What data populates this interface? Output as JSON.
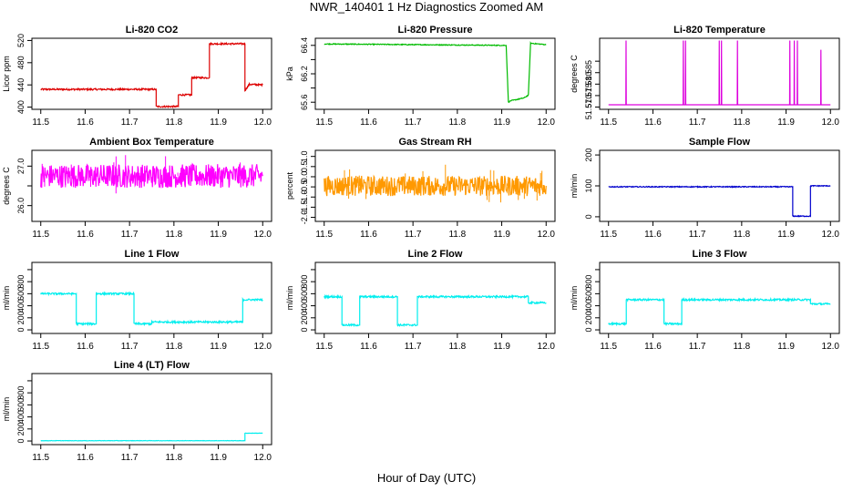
{
  "figure": {
    "title": "NWR_140401  1 Hz Diagnostics Zoomed AM",
    "xlabel": "Hour of Day (UTC)"
  },
  "chart_data": [
    {
      "type": "line",
      "title": "Li-820 CO2",
      "ylabel": "Licor ppm",
      "color": "#dd0000",
      "xlim": [
        11.48,
        12.02
      ],
      "ylim": [
        396,
        524
      ],
      "xticks": [
        11.5,
        11.6,
        11.7,
        11.8,
        11.9,
        12.0
      ],
      "yticks": [
        400,
        440,
        480,
        520
      ],
      "ytick_labels": [
        "400",
        "440",
        "480",
        "520"
      ],
      "noise": 1.5,
      "series": [
        {
          "x": [
            11.5,
            11.76,
            11.76,
            11.81,
            11.81,
            11.84,
            11.84,
            11.88,
            11.88,
            11.96,
            11.96,
            11.97,
            12.0
          ],
          "values": [
            432,
            432,
            401,
            401,
            422,
            422,
            453,
            453,
            514,
            514,
            430,
            441,
            440
          ]
        }
      ]
    },
    {
      "type": "line",
      "title": "Li-820 Pressure",
      "ylabel": "kPa",
      "color": "#00bb00",
      "xlim": [
        11.48,
        12.02
      ],
      "ylim": [
        65.5,
        66.5
      ],
      "xticks": [
        11.5,
        11.6,
        11.7,
        11.8,
        11.9,
        12.0
      ],
      "yticks": [
        65.6,
        65.8,
        66.0,
        66.2,
        66.4
      ],
      "ytick_labels": [
        "65.6",
        "",
        "66.2",
        "",
        "66.4"
      ],
      "noise": 0.006,
      "series": [
        {
          "x": [
            11.5,
            11.91,
            11.915,
            11.92,
            11.95,
            11.96,
            11.965,
            12.0
          ],
          "values": [
            66.42,
            66.4,
            65.6,
            65.62,
            65.66,
            65.7,
            66.43,
            66.41
          ]
        }
      ]
    },
    {
      "type": "line",
      "title": "Li-820 Temperature",
      "ylabel": "degrees C",
      "color": "#dd00dd",
      "xlim": [
        11.48,
        12.02
      ],
      "ylim": [
        51.569,
        51.6
      ],
      "xticks": [
        11.5,
        11.6,
        11.7,
        11.8,
        11.9,
        12.0
      ],
      "yticks": [
        51.57,
        51.575,
        51.58,
        51.585,
        51.59
      ],
      "ytick_labels": [
        "51.570",
        "51.575",
        "51.580",
        "51.585",
        ""
      ],
      "noise": 0,
      "series": [
        {
          "x": [
            11.5,
            11.539,
            11.5395,
            11.54,
            11.668,
            11.6685,
            11.669,
            11.673,
            11.6735,
            11.674,
            11.749,
            11.7495,
            11.75,
            11.754,
            11.7545,
            11.755,
            11.79,
            11.7905,
            11.791,
            11.908,
            11.9085,
            11.909,
            11.918,
            11.9185,
            11.919,
            11.925,
            11.9255,
            11.926,
            11.978,
            11.9785,
            11.979,
            12.0
          ],
          "values": [
            51.571,
            51.571,
            51.599,
            51.571,
            51.571,
            51.599,
            51.571,
            51.571,
            51.599,
            51.571,
            51.571,
            51.599,
            51.571,
            51.571,
            51.599,
            51.571,
            51.571,
            51.599,
            51.571,
            51.571,
            51.599,
            51.571,
            51.571,
            51.599,
            51.571,
            51.571,
            51.599,
            51.571,
            51.571,
            51.595,
            51.571,
            51.571
          ]
        }
      ]
    },
    {
      "type": "line",
      "title": "Ambient Box Temperature",
      "ylabel": "degrees C",
      "color": "#ff00ff",
      "xlim": [
        11.48,
        12.02
      ],
      "ylim": [
        25.6,
        27.4
      ],
      "xticks": [
        11.5,
        11.6,
        11.7,
        11.8,
        11.9,
        12.0
      ],
      "yticks": [
        26.0,
        26.5,
        27.0
      ],
      "ytick_labels": [
        "26.0",
        "",
        "27.0"
      ],
      "noise": 0.3,
      "series": [
        {
          "x": [
            11.5,
            12.0
          ],
          "values": [
            26.75,
            26.75
          ]
        }
      ]
    },
    {
      "type": "line",
      "title": "Gas Stream RH",
      "ylabel": "percent",
      "color": "#ff9900",
      "xlim": [
        11.48,
        12.02
      ],
      "ylim": [
        -2.2,
        1.3
      ],
      "xticks": [
        11.5,
        11.6,
        11.7,
        11.8,
        11.9,
        12.0
      ],
      "yticks": [
        -2.0,
        -1.5,
        -1.0,
        -0.5,
        0.0,
        0.5,
        1.0
      ],
      "ytick_labels": [
        "-2.0",
        "-1.5",
        "-1.0",
        "-0.5",
        "0.0",
        "0.5",
        "1.0"
      ],
      "noise": 0.5,
      "series": [
        {
          "x": [
            11.5,
            12.0
          ],
          "values": [
            -0.45,
            -0.45
          ]
        }
      ]
    },
    {
      "type": "line",
      "title": "Sample Flow",
      "ylabel": "ml/min",
      "color": "#0000cc",
      "xlim": [
        11.48,
        12.02
      ],
      "ylim": [
        -15,
        215
      ],
      "xticks": [
        11.5,
        11.6,
        11.7,
        11.8,
        11.9,
        12.0
      ],
      "yticks": [
        0,
        100,
        200
      ],
      "ytick_labels": [
        "0",
        "100",
        "200"
      ],
      "noise": 1.5,
      "series": [
        {
          "x": [
            11.5,
            11.915,
            11.915,
            11.955,
            11.955,
            12.0
          ],
          "values": [
            97,
            97,
            2,
            2,
            100,
            100
          ]
        }
      ]
    },
    {
      "type": "line",
      "title": "Line 1 Flow",
      "ylabel": "ml/min",
      "color": "#00eeee",
      "xlim": [
        11.48,
        12.02
      ],
      "ylim": [
        -60,
        1120
      ],
      "xticks": [
        11.5,
        11.6,
        11.7,
        11.8,
        11.9,
        12.0
      ],
      "yticks": [
        0,
        200,
        400,
        600,
        800,
        1000
      ],
      "ytick_labels": [
        "0",
        "200",
        "400",
        "600",
        "800",
        ""
      ],
      "noise": 15,
      "series": [
        {
          "x": [
            11.5,
            11.58,
            11.58,
            11.625,
            11.625,
            11.71,
            11.71,
            11.75,
            11.75,
            11.955,
            11.955,
            12.0
          ],
          "values": [
            600,
            600,
            100,
            100,
            600,
            600,
            100,
            100,
            130,
            130,
            500,
            500
          ]
        }
      ]
    },
    {
      "type": "line",
      "title": "Line 2 Flow",
      "ylabel": "ml/min",
      "color": "#00eeee",
      "xlim": [
        11.48,
        12.02
      ],
      "ylim": [
        -60,
        1120
      ],
      "xticks": [
        11.5,
        11.6,
        11.7,
        11.8,
        11.9,
        12.0
      ],
      "yticks": [
        0,
        200,
        400,
        600,
        800,
        1000
      ],
      "ytick_labels": [
        "0",
        "200",
        "400",
        "600",
        "800",
        ""
      ],
      "noise": 15,
      "series": [
        {
          "x": [
            11.5,
            11.54,
            11.54,
            11.58,
            11.58,
            11.665,
            11.665,
            11.71,
            11.71,
            11.96,
            11.96,
            12.0
          ],
          "values": [
            550,
            550,
            80,
            80,
            550,
            550,
            80,
            80,
            550,
            550,
            450,
            450
          ]
        }
      ]
    },
    {
      "type": "line",
      "title": "Line 3 Flow",
      "ylabel": "ml/min",
      "color": "#00eeee",
      "xlim": [
        11.48,
        12.02
      ],
      "ylim": [
        -60,
        1120
      ],
      "xticks": [
        11.5,
        11.6,
        11.7,
        11.8,
        11.9,
        12.0
      ],
      "yticks": [
        0,
        200,
        400,
        600,
        800,
        1000
      ],
      "ytick_labels": [
        "0",
        "200",
        "400",
        "600",
        "800",
        ""
      ],
      "noise": 15,
      "series": [
        {
          "x": [
            11.5,
            11.54,
            11.54,
            11.625,
            11.625,
            11.665,
            11.665,
            11.955,
            11.955,
            12.0
          ],
          "values": [
            100,
            100,
            500,
            500,
            100,
            100,
            500,
            500,
            430,
            430
          ]
        }
      ]
    },
    {
      "type": "line",
      "title": "Line 4 (LT) Flow",
      "ylabel": "ml/min",
      "color": "#00eeee",
      "xlim": [
        11.48,
        12.02
      ],
      "ylim": [
        -60,
        1120
      ],
      "xticks": [
        11.5,
        11.6,
        11.7,
        11.8,
        11.9,
        12.0
      ],
      "yticks": [
        0,
        200,
        400,
        600,
        800,
        1000
      ],
      "ytick_labels": [
        "0",
        "200",
        "400",
        "600",
        "800",
        ""
      ],
      "noise": 3,
      "series": [
        {
          "x": [
            11.5,
            11.96,
            11.96,
            12.0
          ],
          "values": [
            5,
            5,
            130,
            130
          ]
        }
      ]
    }
  ]
}
